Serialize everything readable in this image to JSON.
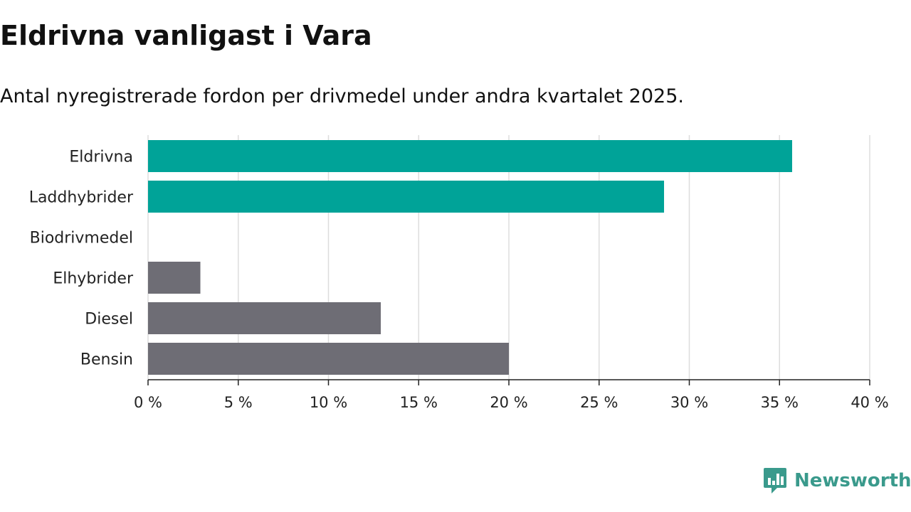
{
  "title": "Eldrivna vanligast i Vara",
  "subtitle": "Antal nyregistrerade fordon per drivmedel under andra kvartalet 2025.",
  "brand": "Newsworthy",
  "colors": {
    "highlight": "#00a398",
    "other": "#6e6d75",
    "grid": "#dddddd",
    "axis": "#222222",
    "brand": "#3a9a8c"
  },
  "chart_data": {
    "type": "bar",
    "orientation": "horizontal",
    "categories": [
      "Eldrivna",
      "Laddhybrider",
      "Biodrivmedel",
      "Elhybrider",
      "Diesel",
      "Bensin"
    ],
    "values": [
      35.7,
      28.6,
      0,
      2.9,
      12.9,
      20.0
    ],
    "bar_colors": [
      "highlight",
      "highlight",
      "other",
      "other",
      "other",
      "other"
    ],
    "xlim": [
      0,
      40
    ],
    "xticks": [
      0,
      5,
      10,
      15,
      20,
      25,
      30,
      35,
      40
    ],
    "xtick_labels": [
      "0 %",
      "5 %",
      "10 %",
      "15 %",
      "20 %",
      "25 %",
      "30 %",
      "35 %",
      "40 %"
    ],
    "grid": true
  }
}
